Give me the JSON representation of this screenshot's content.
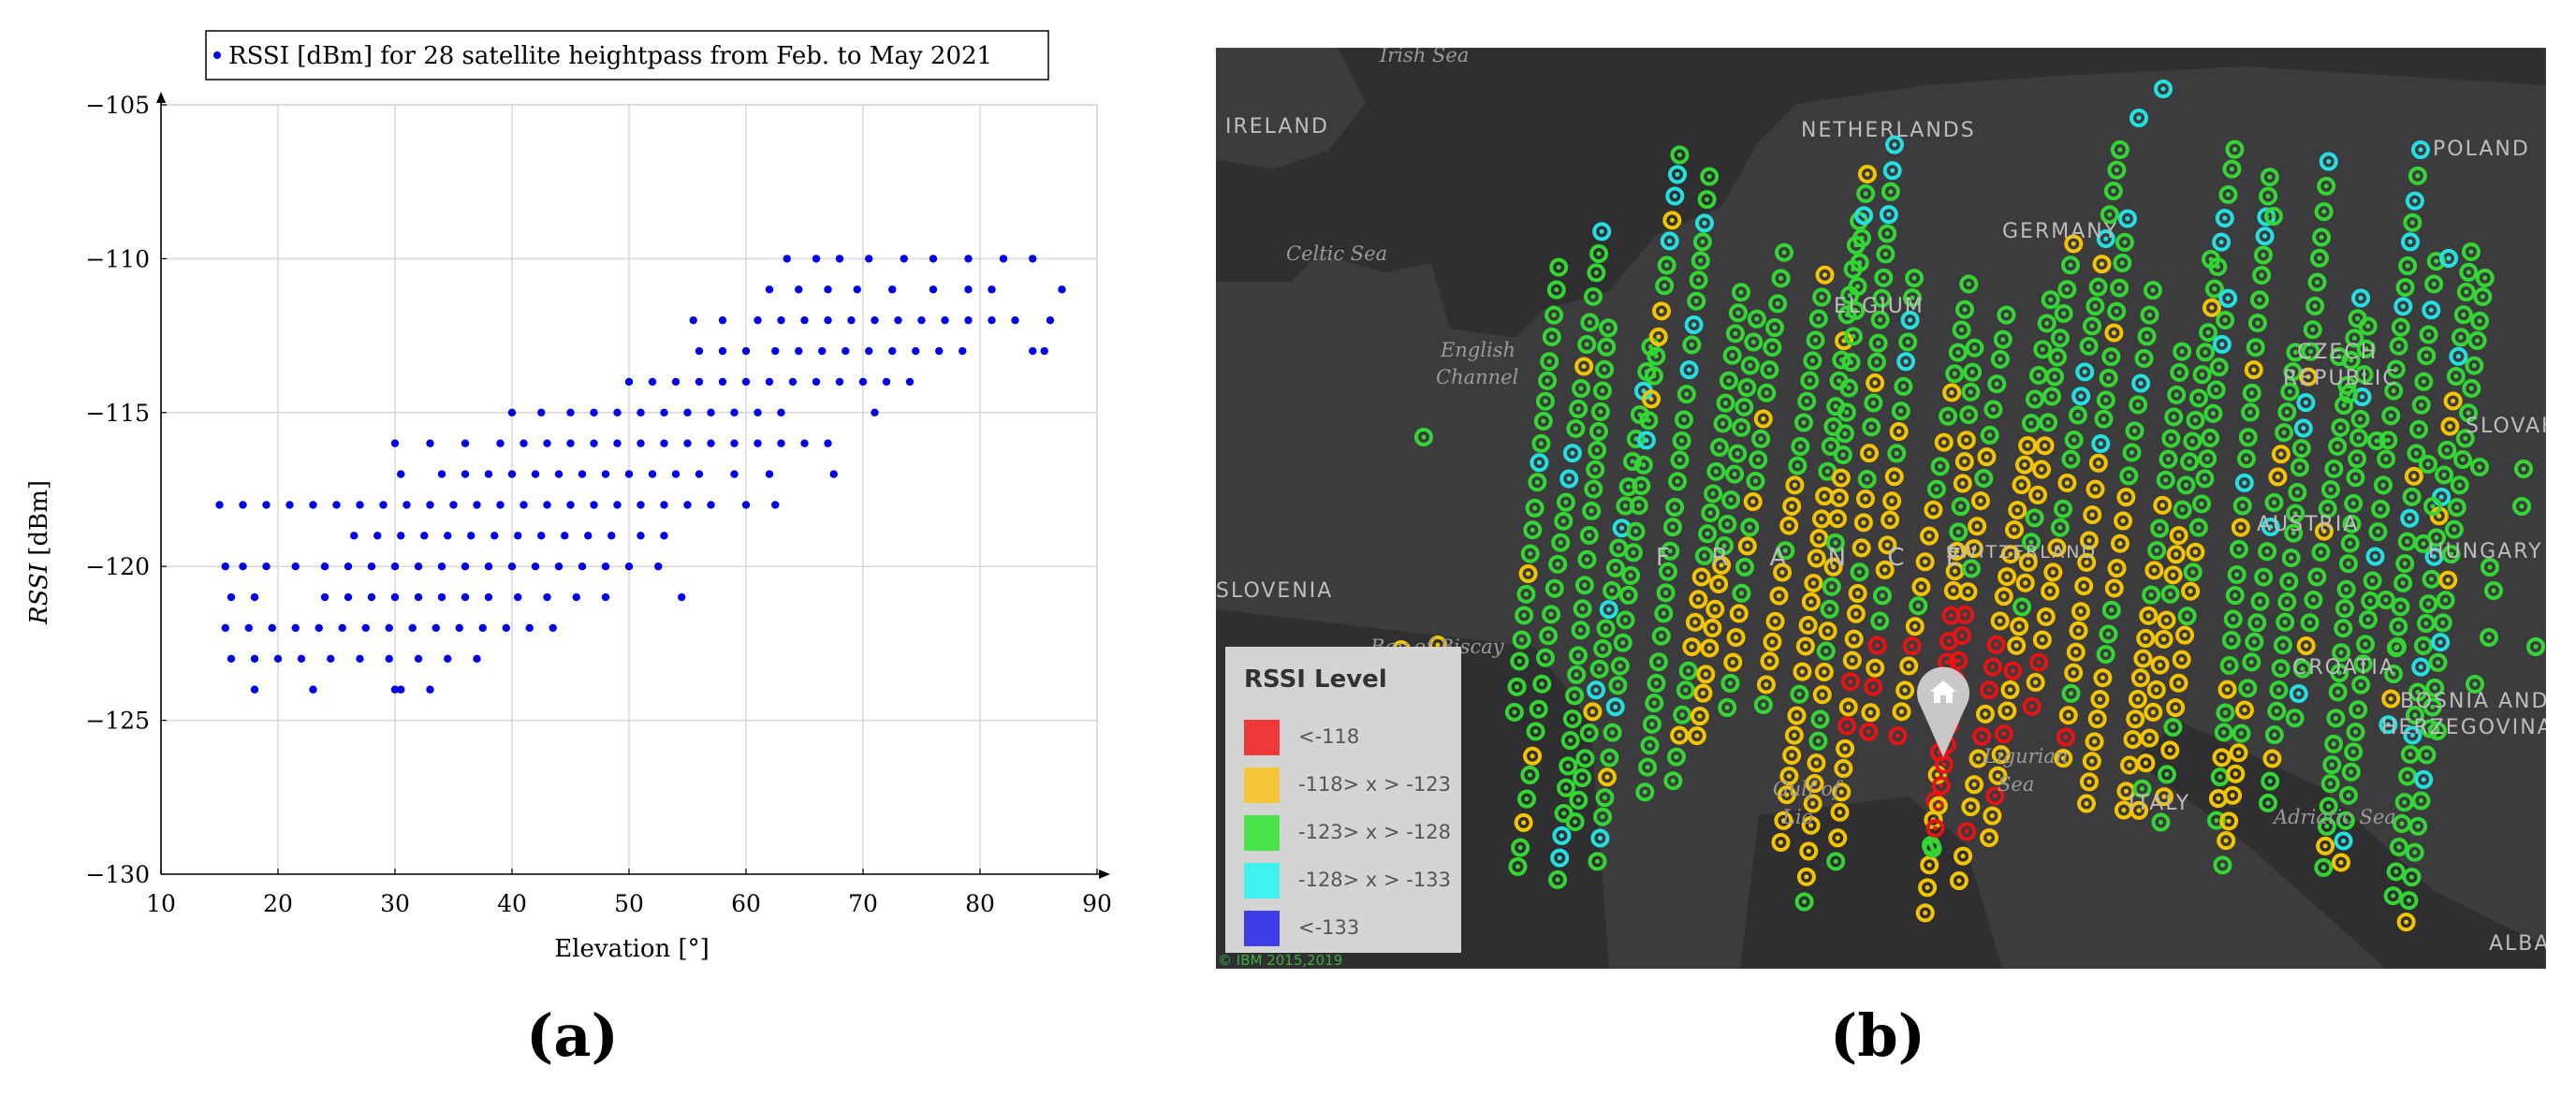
{
  "panels": {
    "a_label": "(a)",
    "b_label": "(b)"
  },
  "chart_data": {
    "type": "scatter",
    "legend_entry": "RSSI [dBm] for 28 satellite heightpass from Feb. to May 2021",
    "legend_placement": "top-center",
    "xlabel": "Elevation [°]",
    "ylabel_italic": "RSSI",
    "ylabel_unit": "[dBm]",
    "xlim": [
      10,
      90
    ],
    "ylim": [
      -130,
      -105
    ],
    "xticks": [
      10,
      20,
      30,
      40,
      50,
      60,
      70,
      80,
      90
    ],
    "yticks": [
      -130,
      -125,
      -120,
      -115,
      -110,
      -105
    ],
    "grid": true,
    "color": "#0000e6",
    "series": [
      {
        "rows": [
          {
            "y": -110,
            "x": [
              63.5,
              66,
              68,
              70.5,
              73.5,
              76,
              79,
              82,
              84.5
            ]
          },
          {
            "y": -111,
            "x": [
              62,
              64.5,
              67,
              69.5,
              72.5,
              76,
              79,
              81,
              87
            ]
          },
          {
            "y": -112,
            "x": [
              55.5,
              58,
              61,
              63,
              65,
              67,
              69,
              71,
              73,
              75,
              77,
              79,
              81,
              83,
              86
            ]
          },
          {
            "y": -113,
            "x": [
              56,
              58,
              60,
              62.5,
              64.5,
              66.5,
              68.5,
              70.5,
              72.5,
              74.5,
              76.5,
              78.5,
              84.5,
              85.5
            ]
          },
          {
            "y": -114,
            "x": [
              50,
              52,
              54,
              56,
              58,
              60,
              62,
              64,
              66,
              68,
              70,
              72,
              74
            ]
          },
          {
            "y": -115,
            "x": [
              40,
              42.5,
              45,
              47,
              49,
              51,
              53,
              55,
              57,
              59,
              61,
              63,
              71
            ]
          },
          {
            "y": -116,
            "x": [
              30,
              33,
              36,
              39,
              41,
              43,
              45,
              47,
              49,
              51,
              53,
              55,
              57,
              59,
              61,
              63,
              65,
              67
            ]
          },
          {
            "y": -117,
            "x": [
              30.5,
              34,
              36,
              38,
              40,
              42,
              44,
              46,
              48,
              50,
              52,
              54,
              56,
              59,
              62,
              67.5
            ]
          },
          {
            "y": -118,
            "x": [
              15,
              17,
              19,
              21,
              23,
              25,
              27,
              29,
              31,
              33,
              35,
              37,
              39,
              41,
              43,
              45,
              47,
              49,
              51,
              53,
              55,
              57,
              60,
              62.5
            ]
          },
          {
            "y": -119,
            "x": [
              26.5,
              28.5,
              30.5,
              32.5,
              34.5,
              36.5,
              38.5,
              40.5,
              42.5,
              44.5,
              46.5,
              48.5,
              51,
              53
            ]
          },
          {
            "y": -120,
            "x": [
              15.5,
              17,
              19,
              21.5,
              24,
              26,
              28,
              30,
              32,
              34,
              36,
              38,
              40,
              42,
              44,
              46,
              48,
              50,
              52.5
            ]
          },
          {
            "y": -121,
            "x": [
              16,
              18,
              24,
              26,
              28,
              30,
              32,
              34,
              36,
              38,
              40.5,
              43,
              45.5,
              48,
              54.5
            ]
          },
          {
            "y": -122,
            "x": [
              15.5,
              17.5,
              19.5,
              21.5,
              23.5,
              25.5,
              27.5,
              29.5,
              31.5,
              33.5,
              35.5,
              37.5,
              39.5,
              41.5,
              43.5
            ]
          },
          {
            "y": -123,
            "x": [
              16,
              18,
              20,
              22,
              24.5,
              27,
              29.5,
              32,
              34.5,
              37
            ]
          },
          {
            "y": -124,
            "x": [
              18,
              23,
              30,
              30.5,
              33
            ]
          }
        ]
      }
    ]
  },
  "map": {
    "land_labels": [
      "NETHERLANDS",
      "GERMANY",
      "POLAND",
      "IRELAND",
      "ELGIUM",
      "CZECH",
      "REPUBLIC",
      "SLOVAKIA",
      "AUSTRIA",
      "HUNGARY",
      "SLOVENIA",
      "CROATIA",
      "BOSNIA AND",
      "HERZEGOVINA",
      "ITALY",
      "ALBAN",
      "F R A N C E",
      "SWITZERLAND"
    ],
    "sea_labels": [
      "Irish Sea",
      "Celtic Sea",
      "English",
      "Channel",
      "Bay of Biscay",
      "Gulf of",
      "Lio",
      "Adriatic Sea",
      "Ligurian",
      "Sea"
    ],
    "copyright": "© IBM 2015,2019",
    "legend": {
      "title": "RSSI Level",
      "items": [
        {
          "label": "<-118",
          "color": "#f03a3a"
        },
        {
          "label": "-118> x > -123",
          "color": "#f5c63a"
        },
        {
          "label": "-123> x > -128",
          "color": "#49e34c"
        },
        {
          "label": "-128> x > -133",
          "color": "#3ef2f0"
        },
        {
          "label": "<-133",
          "color": "#3e3ee8"
        }
      ]
    },
    "marker_colors": {
      "red": "#e81414",
      "yellow": "#f5c400",
      "green": "#33d633",
      "cyan": "#24e0e0"
    },
    "home_icon": "home-pin-icon"
  }
}
